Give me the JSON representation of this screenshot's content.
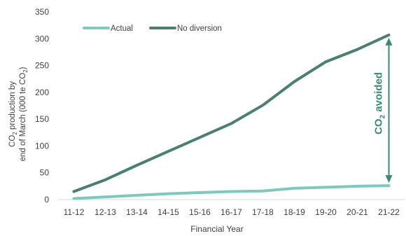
{
  "chart_data": {
    "type": "line",
    "title": "",
    "xlabel": "Financial Year",
    "ylabel_line1_prefix": "CO",
    "ylabel_line1_sub": "2",
    "ylabel_line1_suffix": " production by",
    "ylabel_line2_prefix": "end of March (000 te CO",
    "ylabel_line2_sub": "2",
    "ylabel_line2_suffix": ")",
    "ylim": [
      0,
      350
    ],
    "yticks": [
      0,
      50,
      100,
      150,
      200,
      250,
      300,
      350
    ],
    "grid": false,
    "legend_position": "top-left",
    "categories": [
      "11-12",
      "12-13",
      "13-14",
      "14-15",
      "15-16",
      "16-17",
      "17-18",
      "18-19",
      "19-20",
      "20-21",
      "21-22"
    ],
    "series": [
      {
        "name": "Actual",
        "color": "#7fc8bd",
        "values": [
          2,
          5,
          8,
          11,
          13,
          15,
          16,
          21,
          23,
          25,
          26
        ]
      },
      {
        "name": "No diversion",
        "color": "#4a7f72",
        "values": [
          15,
          37,
          64,
          90,
          116,
          142,
          176,
          220,
          257,
          280,
          307
        ]
      }
    ],
    "annotation": {
      "text_prefix": "CO",
      "text_sub": "2",
      "text_suffix": " avoided",
      "color": "#3a8a6e",
      "at_category": "21-22",
      "from_value": 26,
      "to_value": 307
    }
  }
}
